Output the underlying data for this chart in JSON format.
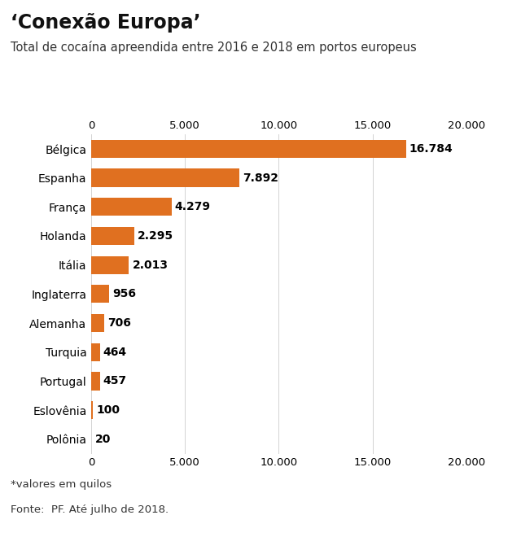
{
  "title": "‘Conexão Europa’",
  "subtitle": "Total de cocaína apreendida entre 2016 e 2018 em portos europeus",
  "categories": [
    "Bélgica",
    "Espanha",
    "França",
    "Holanda",
    "Itália",
    "Inglaterra",
    "Alemanha",
    "Turquia",
    "Portugal",
    "Eslovênia",
    "Polônia"
  ],
  "values": [
    16784,
    7892,
    4279,
    2295,
    2013,
    956,
    706,
    464,
    457,
    100,
    20
  ],
  "labels": [
    "16.784",
    "7.892",
    "4.279",
    "2.295",
    "2.013",
    "956",
    "706",
    "464",
    "457",
    "100",
    "20"
  ],
  "bar_color": "#e07020",
  "background_color": "#ffffff",
  "xlim": [
    0,
    20000
  ],
  "xticks": [
    0,
    5000,
    10000,
    15000,
    20000
  ],
  "xtick_labels": [
    "0",
    "5.000",
    "10.000",
    "15.000",
    "20.000"
  ],
  "footnote": "*valores em quilos",
  "source": "Fonte:  PF. Até julho de 2018.",
  "title_fontsize": 17,
  "subtitle_fontsize": 10.5,
  "label_fontsize": 10,
  "tick_fontsize": 9.5,
  "footnote_fontsize": 9.5,
  "source_fontsize": 9.5
}
